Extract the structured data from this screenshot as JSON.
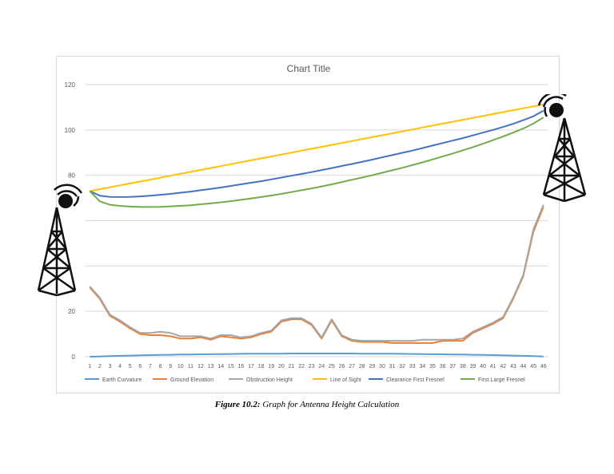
{
  "caption": {
    "label": "Figure 10.2:",
    "text": "Graph for Antenna Height Calculation"
  },
  "chart_data": {
    "type": "line",
    "title": "Chart Title",
    "xlabel": "",
    "ylabel": "",
    "ylim": [
      0,
      120
    ],
    "yticks": [
      0,
      20,
      80,
      100,
      120
    ],
    "grid": true,
    "legend_position": "bottom",
    "categories": [
      1,
      2,
      3,
      4,
      5,
      6,
      7,
      8,
      9,
      10,
      11,
      12,
      13,
      14,
      15,
      16,
      17,
      18,
      19,
      20,
      21,
      22,
      23,
      24,
      25,
      26,
      27,
      28,
      29,
      30,
      31,
      32,
      33,
      34,
      35,
      36,
      37,
      38,
      39,
      40,
      41,
      42,
      43,
      44,
      45,
      46
    ],
    "series": [
      {
        "name": "Earth Curvature",
        "color": "#5b9bd5",
        "values": [
          0,
          0.1,
          0.25,
          0.4,
          0.5,
          0.6,
          0.7,
          0.8,
          0.85,
          0.95,
          1.0,
          1.05,
          1.1,
          1.15,
          1.2,
          1.25,
          1.3,
          1.3,
          1.35,
          1.35,
          1.4,
          1.4,
          1.4,
          1.4,
          1.4,
          1.4,
          1.4,
          1.35,
          1.35,
          1.3,
          1.3,
          1.25,
          1.2,
          1.15,
          1.1,
          1.05,
          1.0,
          0.95,
          0.85,
          0.8,
          0.7,
          0.6,
          0.5,
          0.4,
          0.25,
          0.1
        ]
      },
      {
        "name": "Ground Elevation",
        "color": "#ed7d31",
        "values": [
          30.5,
          25.5,
          18,
          15.5,
          12.5,
          10,
          9.5,
          9.5,
          9,
          8,
          8,
          8.5,
          7.5,
          9,
          8.5,
          8,
          8.5,
          10,
          11,
          15.5,
          16.5,
          16.5,
          14,
          8,
          16,
          9,
          7,
          6.5,
          6.5,
          6.5,
          6,
          6,
          6,
          6,
          6,
          7,
          7,
          7,
          10.5,
          12.5,
          14.5,
          17,
          25.5,
          35.5,
          55,
          66
        ]
      },
      {
        "name": "Obstruction Height",
        "color": "#a5a5a5",
        "values": [
          31,
          26,
          18.5,
          16,
          13,
          10.5,
          10.5,
          11,
          10.5,
          9,
          9,
          9,
          8,
          9.5,
          9.5,
          8.5,
          9,
          10.5,
          11.5,
          16,
          17,
          17,
          14.5,
          8.5,
          16.5,
          9.5,
          7.5,
          7,
          7,
          7,
          7,
          7,
          7,
          7.5,
          7.5,
          7.5,
          7.5,
          8,
          11,
          13,
          15,
          17.5,
          26,
          36,
          56,
          67
        ]
      },
      {
        "name": "Line of Sight",
        "color": "#ffc000",
        "values": [
          73,
          73.85,
          74.7,
          75.55,
          76.4,
          77.25,
          78.1,
          78.95,
          79.8,
          80.65,
          81.5,
          82.35,
          83.2,
          84.05,
          84.9,
          85.75,
          86.6,
          87.45,
          88.3,
          89.15,
          90,
          90.85,
          91.7,
          92.55,
          93.4,
          94.25,
          95.1,
          95.95,
          96.8,
          97.65,
          98.5,
          99.35,
          100.2,
          101.05,
          101.9,
          102.75,
          103.6,
          104.45,
          105.3,
          106.15,
          107,
          107.85,
          108.7,
          109.55,
          110.4,
          111.25
        ]
      },
      {
        "name": "Clearance First Fresnel",
        "color": "#4472c4",
        "values": [
          73,
          71,
          70.5,
          70.4,
          70.5,
          70.7,
          71,
          71.4,
          71.8,
          72.3,
          72.8,
          73.4,
          74,
          74.6,
          75.3,
          76,
          76.7,
          77.4,
          78.2,
          79,
          79.8,
          80.6,
          81.4,
          82.3,
          83.2,
          84.1,
          85,
          85.9,
          86.9,
          87.9,
          88.9,
          89.9,
          90.9,
          92,
          93.1,
          94.2,
          95.3,
          96.4,
          97.6,
          98.8,
          100,
          101.3,
          102.7,
          104.3,
          106,
          108.5
        ]
      },
      {
        "name": "First Large Fresnel",
        "color": "#70ad47",
        "values": [
          73,
          68.5,
          67,
          66.5,
          66.2,
          66,
          66,
          66.1,
          66.3,
          66.5,
          66.8,
          67.2,
          67.6,
          68.1,
          68.6,
          69.2,
          69.8,
          70.4,
          71.1,
          71.8,
          72.6,
          73.4,
          74.2,
          75.1,
          76,
          77,
          78,
          79,
          80,
          81.1,
          82.2,
          83.3,
          84.5,
          85.7,
          87,
          88.3,
          89.6,
          91,
          92.4,
          93.9,
          95.5,
          97.1,
          98.8,
          100.6,
          102.8,
          105.5
        ]
      }
    ]
  },
  "icons": {
    "left_tower": "radio-tower-icon",
    "right_tower": "radio-tower-icon"
  }
}
